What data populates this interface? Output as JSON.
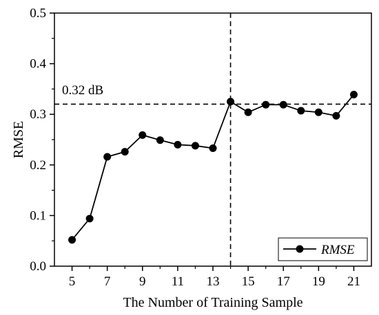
{
  "chart_data": {
    "type": "line",
    "xlabel": "The Number of Training Sample",
    "ylabel": "RMSE",
    "xlim": [
      4,
      22
    ],
    "ylim": [
      0.0,
      0.5
    ],
    "x_ticks": [
      5,
      7,
      9,
      11,
      13,
      15,
      17,
      19,
      21
    ],
    "y_ticks": [
      0.0,
      0.1,
      0.2,
      0.3,
      0.4,
      0.5
    ],
    "x_tick_labels": [
      "5",
      "7",
      "9",
      "11",
      "13",
      "15",
      "17",
      "19",
      "21"
    ],
    "y_tick_labels": [
      "0.0",
      "0.1",
      "0.2",
      "0.3",
      "0.4",
      "0.5"
    ],
    "grid": false,
    "series": [
      {
        "name": "RMSE",
        "x": [
          5,
          6,
          7,
          8,
          9,
          10,
          11,
          12,
          13,
          14,
          15,
          16,
          17,
          18,
          19,
          20,
          21
        ],
        "y": [
          0.052,
          0.094,
          0.216,
          0.226,
          0.259,
          0.249,
          0.24,
          0.238,
          0.233,
          0.325,
          0.304,
          0.319,
          0.319,
          0.307,
          0.304,
          0.297,
          0.339
        ],
        "marker": "circle",
        "color": "#000000"
      }
    ],
    "reference_lines": {
      "horizontal": {
        "y": 0.32,
        "label": "0.32 dB",
        "style": "dashed"
      },
      "vertical": {
        "x": 14,
        "style": "dashed"
      }
    },
    "legend": {
      "position": "bottom-right",
      "entries": [
        "RMSE"
      ]
    }
  }
}
